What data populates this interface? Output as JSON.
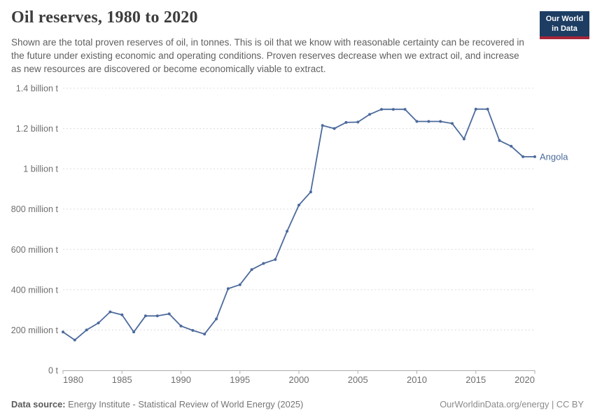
{
  "header": {
    "title": "Oil reserves, 1980 to 2020",
    "subtitle": "Shown are the total proven reserves of oil, in tonnes. This is oil that we know with reasonable certainty can be recovered in the future under existing economic and operating conditions. Proven reserves decrease when we extract oil, and increase as new resources are discovered or become economically viable to extract.",
    "logo_line1": "Our World",
    "logo_line2": "in Data"
  },
  "chart_data": {
    "type": "line",
    "title": "Oil reserves, 1980 to 2020",
    "unit": "tonnes",
    "values_unit": "million tonnes",
    "xlim": [
      1980,
      2020
    ],
    "ylim_million_tonnes": [
      0,
      1400
    ],
    "grid": "horizontal-dashed",
    "legend_position": "end-of-line-label",
    "x_ticks": [
      1980,
      1985,
      1990,
      1995,
      2000,
      2005,
      2010,
      2015,
      2020
    ],
    "y_ticks": [
      {
        "value": 0,
        "label": "0 t"
      },
      {
        "value": 200,
        "label": "200 million t"
      },
      {
        "value": 400,
        "label": "400 million t"
      },
      {
        "value": 600,
        "label": "600 million t"
      },
      {
        "value": 800,
        "label": "800 million t"
      },
      {
        "value": 1000,
        "label": "1 billion t"
      },
      {
        "value": 1200,
        "label": "1.2 billion t"
      },
      {
        "value": 1400,
        "label": "1.4 billion t"
      }
    ],
    "series": [
      {
        "name": "Angola",
        "color": "#4C6A9C",
        "years": [
          1980,
          1981,
          1982,
          1983,
          1984,
          1985,
          1986,
          1987,
          1988,
          1989,
          1990,
          1991,
          1992,
          1993,
          1994,
          1995,
          1996,
          1997,
          1998,
          1999,
          2000,
          2001,
          2002,
          2003,
          2004,
          2005,
          2006,
          2007,
          2008,
          2009,
          2010,
          2011,
          2012,
          2013,
          2014,
          2015,
          2016,
          2017,
          2018,
          2019,
          2020
        ],
        "values": [
          190,
          150,
          200,
          235,
          290,
          275,
          190,
          270,
          270,
          280,
          220,
          198,
          180,
          255,
          405,
          425,
          500,
          530,
          550,
          690,
          820,
          885,
          1215,
          1200,
          1230,
          1232,
          1270,
          1295,
          1295,
          1295,
          1235,
          1235,
          1235,
          1225,
          1148,
          1296,
          1296,
          1140,
          1112,
          1060,
          1060
        ]
      }
    ]
  },
  "footer": {
    "datasource_label": "Data source:",
    "datasource_text": " Energy Institute - Statistical Review of World Energy (2025)",
    "attribution": "OurWorldinData.org/energy | CC BY"
  },
  "colors": {
    "series_blue": "#4C6A9C",
    "logo_navy": "#1D3D63",
    "logo_red": "#A52639",
    "gridline": "#DCDCDC",
    "axis": "#ADADAD",
    "tick_label": "#6E6E6E",
    "title_text": "#3D3D3D",
    "subtitle_text": "#5F5F5F",
    "footer_text": "#757575"
  }
}
